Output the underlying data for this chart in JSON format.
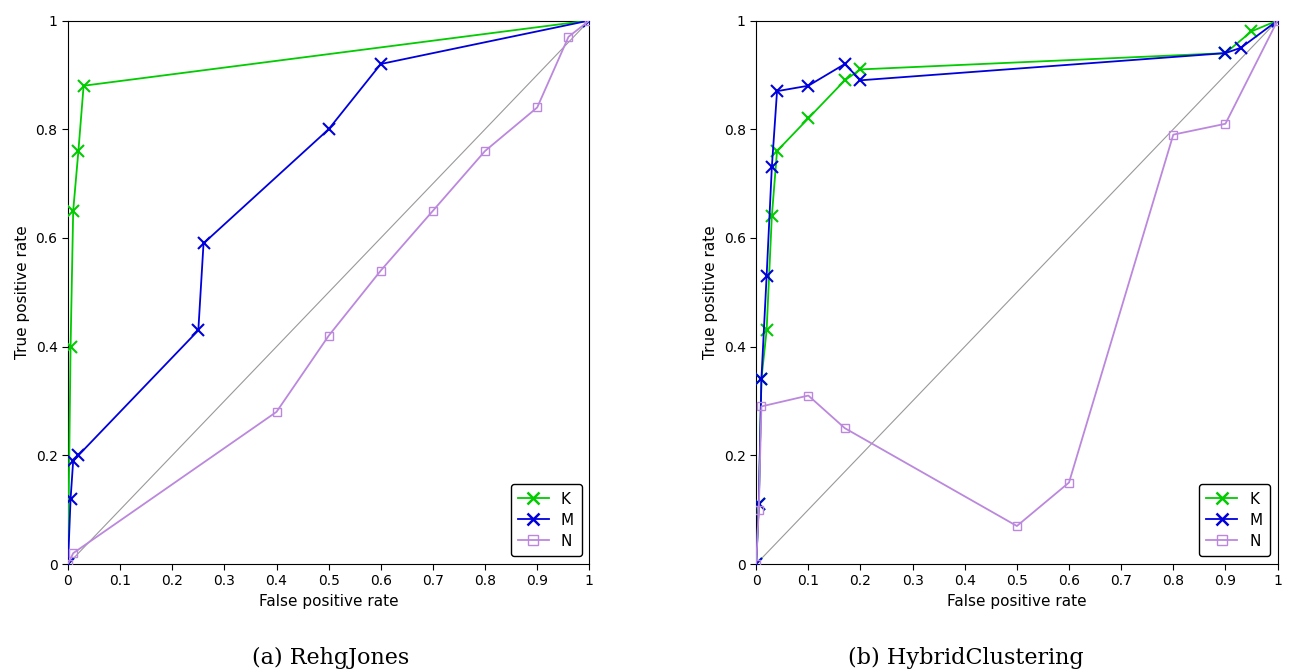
{
  "subplot_a": {
    "K": {
      "x": [
        0.0,
        0.005,
        0.01,
        0.02,
        0.03,
        1.0
      ],
      "y": [
        0.0,
        0.4,
        0.65,
        0.76,
        0.88,
        1.0
      ],
      "color": "#00cc00",
      "marker": "x",
      "label": "K"
    },
    "M": {
      "x": [
        0.0,
        0.005,
        0.01,
        0.02,
        0.25,
        0.26,
        0.5,
        0.6,
        1.0
      ],
      "y": [
        0.0,
        0.12,
        0.19,
        0.2,
        0.43,
        0.59,
        0.8,
        0.92,
        1.0
      ],
      "color": "#0000dd",
      "marker": "x",
      "label": "M"
    },
    "N": {
      "x": [
        0.0,
        0.01,
        0.4,
        0.5,
        0.6,
        0.7,
        0.8,
        0.9,
        0.96,
        1.0
      ],
      "y": [
        0.0,
        0.02,
        0.28,
        0.42,
        0.54,
        0.65,
        0.76,
        0.84,
        0.97,
        1.0
      ],
      "color": "#bb88dd",
      "marker": "s",
      "label": "N"
    }
  },
  "subplot_b": {
    "K": {
      "x": [
        0.0,
        0.005,
        0.01,
        0.02,
        0.03,
        0.04,
        0.1,
        0.17,
        0.2,
        0.9,
        0.95,
        1.0
      ],
      "y": [
        0.0,
        0.11,
        0.34,
        0.43,
        0.64,
        0.76,
        0.82,
        0.89,
        0.91,
        0.94,
        0.98,
        1.0
      ],
      "color": "#00cc00",
      "marker": "x",
      "label": "K"
    },
    "M": {
      "x": [
        0.0,
        0.005,
        0.01,
        0.02,
        0.03,
        0.04,
        0.1,
        0.17,
        0.2,
        0.9,
        0.93,
        1.0
      ],
      "y": [
        0.0,
        0.11,
        0.34,
        0.53,
        0.73,
        0.87,
        0.88,
        0.92,
        0.89,
        0.94,
        0.95,
        1.0
      ],
      "color": "#0000dd",
      "marker": "x",
      "label": "M"
    },
    "N": {
      "x": [
        0.0,
        0.005,
        0.01,
        0.1,
        0.17,
        0.5,
        0.6,
        0.8,
        0.9,
        1.0
      ],
      "y": [
        0.0,
        0.1,
        0.29,
        0.31,
        0.25,
        0.07,
        0.15,
        0.79,
        0.81,
        1.0
      ],
      "color": "#bb88dd",
      "marker": "s",
      "label": "N"
    }
  },
  "xlabel": "False positive rate",
  "ylabel": "True positive rate",
  "xlim": [
    0,
    1
  ],
  "ylim": [
    0,
    1
  ],
  "xticks": [
    0,
    0.1,
    0.2,
    0.3,
    0.4,
    0.5,
    0.6,
    0.7,
    0.8,
    0.9,
    1
  ],
  "yticks": [
    0,
    0.2,
    0.4,
    0.6,
    0.8,
    1.0
  ],
  "background_color": "#ffffff",
  "diagonal_color": "#999999",
  "title_a": "(a) RehgJones",
  "title_b": "(b) HybridClustering",
  "title_fontsize": 16,
  "tick_fontsize": 10,
  "label_fontsize": 11,
  "legend_fontsize": 11
}
